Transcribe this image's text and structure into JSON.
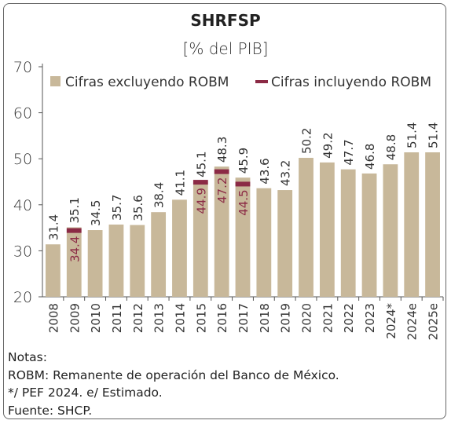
{
  "chart_data": {
    "type": "bar",
    "title": "SHRFSP",
    "subtitle": "[% del PIB]",
    "categories": [
      "2008",
      "2009",
      "2010",
      "2011",
      "2012",
      "2013",
      "2014",
      "2015",
      "2016",
      "2017",
      "2018",
      "2019",
      "2020",
      "2021",
      "2022",
      "2023",
      "2024*",
      "2024e",
      "2025e"
    ],
    "series": [
      {
        "name": "Cifras excluyendo ROBM",
        "color": "#c8b89a",
        "values": [
          31.4,
          35.1,
          34.5,
          35.7,
          35.6,
          38.4,
          41.1,
          45.1,
          48.3,
          45.9,
          43.6,
          43.2,
          50.2,
          49.2,
          47.7,
          46.8,
          48.8,
          51.4,
          51.4
        ]
      },
      {
        "name": "Cifras incluyendo ROBM",
        "color": "#8b2a45",
        "values": [
          null,
          34.4,
          null,
          null,
          null,
          null,
          null,
          44.9,
          47.2,
          44.5,
          null,
          null,
          null,
          null,
          null,
          null,
          null,
          null,
          null
        ]
      }
    ],
    "ylim": [
      20,
      70
    ],
    "yticks": [
      20,
      30,
      40,
      50,
      60,
      70
    ],
    "legend_placement": "top",
    "grid": false
  },
  "notes": [
    "Notas:",
    "ROBM: Remanente de operación del Banco de México.",
    "*/ PEF 2024. e/ Estimado.",
    "Fuente: SHCP."
  ]
}
